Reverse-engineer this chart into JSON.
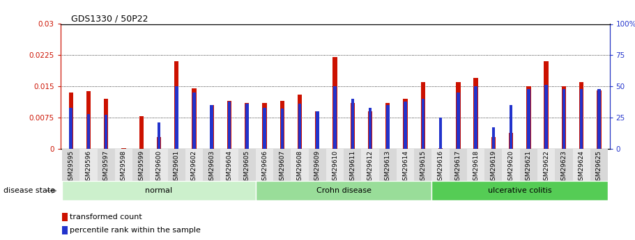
{
  "title": "GDS1330 / 50P22",
  "samples": [
    "GSM29595",
    "GSM29596",
    "GSM29597",
    "GSM29598",
    "GSM29599",
    "GSM29600",
    "GSM29601",
    "GSM29602",
    "GSM29603",
    "GSM29604",
    "GSM29605",
    "GSM29606",
    "GSM29607",
    "GSM29608",
    "GSM29609",
    "GSM29610",
    "GSM29611",
    "GSM29612",
    "GSM29613",
    "GSM29614",
    "GSM29615",
    "GSM29616",
    "GSM29617",
    "GSM29618",
    "GSM29619",
    "GSM29620",
    "GSM29621",
    "GSM29622",
    "GSM29623",
    "GSM29624",
    "GSM29625"
  ],
  "transformed_count": [
    0.0135,
    0.0138,
    0.012,
    0.0001,
    0.0079,
    0.0028,
    0.021,
    0.0145,
    0.0105,
    0.0115,
    0.011,
    0.011,
    0.0115,
    0.013,
    0.009,
    0.022,
    0.011,
    0.009,
    0.011,
    0.012,
    0.016,
    0.0001,
    0.016,
    0.017,
    0.0028,
    0.0038,
    0.015,
    0.021,
    0.015,
    0.016,
    0.014
  ],
  "percentile_rank": [
    33,
    28,
    27,
    0,
    0,
    21,
    50,
    45,
    35,
    38,
    36,
    33,
    32,
    36,
    30,
    50,
    40,
    33,
    35,
    38,
    40,
    25,
    45,
    50,
    17,
    35,
    48,
    51,
    48,
    48,
    48
  ],
  "groups": [
    {
      "name": "normal",
      "start": 0,
      "end": 11,
      "color": "#ccf0cc"
    },
    {
      "name": "Crohn disease",
      "start": 11,
      "end": 21,
      "color": "#99dd99"
    },
    {
      "name": "ulcerative colitis",
      "start": 21,
      "end": 31,
      "color": "#55cc55"
    }
  ],
  "bar_color_red": "#cc1100",
  "bar_color_blue": "#2233cc",
  "ylim_left": [
    0,
    0.03
  ],
  "ylim_right": [
    0,
    100
  ],
  "yticks_left": [
    0,
    0.0075,
    0.015,
    0.0225,
    0.03
  ],
  "ytick_labels_left": [
    "0",
    "0.0075",
    "0.015",
    "0.0225",
    "0.03"
  ],
  "yticks_right": [
    0,
    25,
    50,
    75,
    100
  ],
  "ytick_labels_right": [
    "0",
    "25",
    "50",
    "75",
    "100%"
  ],
  "grid_yticks": [
    0.0075,
    0.015,
    0.0225
  ],
  "background_color": "#ffffff",
  "legend_items": [
    {
      "label": "transformed count",
      "color": "#cc1100"
    },
    {
      "label": "percentile rank within the sample",
      "color": "#2233cc"
    }
  ],
  "disease_state_label": "disease state"
}
